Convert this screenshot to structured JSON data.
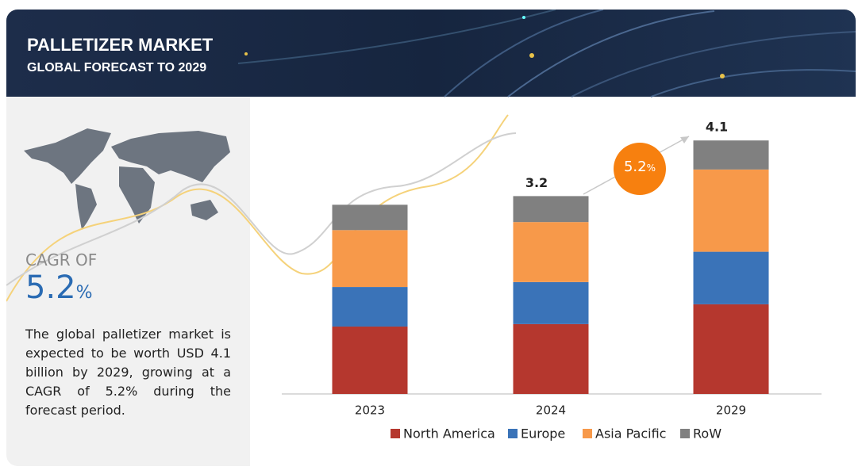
{
  "header": {
    "title": "PALLETIZER MARKET",
    "subtitle": "GLOBAL FORECAST TO 2029"
  },
  "summary": {
    "cagr_label": "CAGR OF",
    "cagr_value": "5.2",
    "cagr_unit": "%",
    "description": "The global palletizer market is expected to be worth USD 4.1 billion by 2029, growing at a CAGR of 5.2% during the forecast period."
  },
  "chart_data": {
    "type": "stacked_bar",
    "categories": [
      "2023",
      "2024",
      "2029"
    ],
    "series": [
      {
        "name": "North America",
        "color": "#b5372e",
        "values": [
          1.09,
          1.13,
          1.45
        ]
      },
      {
        "name": "Europe",
        "color": "#3a73b8",
        "values": [
          0.64,
          0.68,
          0.85
        ]
      },
      {
        "name": "Asia Pacific",
        "color": "#f7994a",
        "values": [
          0.92,
          0.97,
          1.33
        ]
      },
      {
        "name": "RoW",
        "color": "#808080",
        "values": [
          0.41,
          0.42,
          0.47
        ]
      }
    ],
    "totals": [
      null,
      3.2,
      4.1
    ],
    "badge": {
      "value": "5.2",
      "unit": "%"
    },
    "ylim": [
      0,
      4.2
    ],
    "legend": "bottom"
  }
}
